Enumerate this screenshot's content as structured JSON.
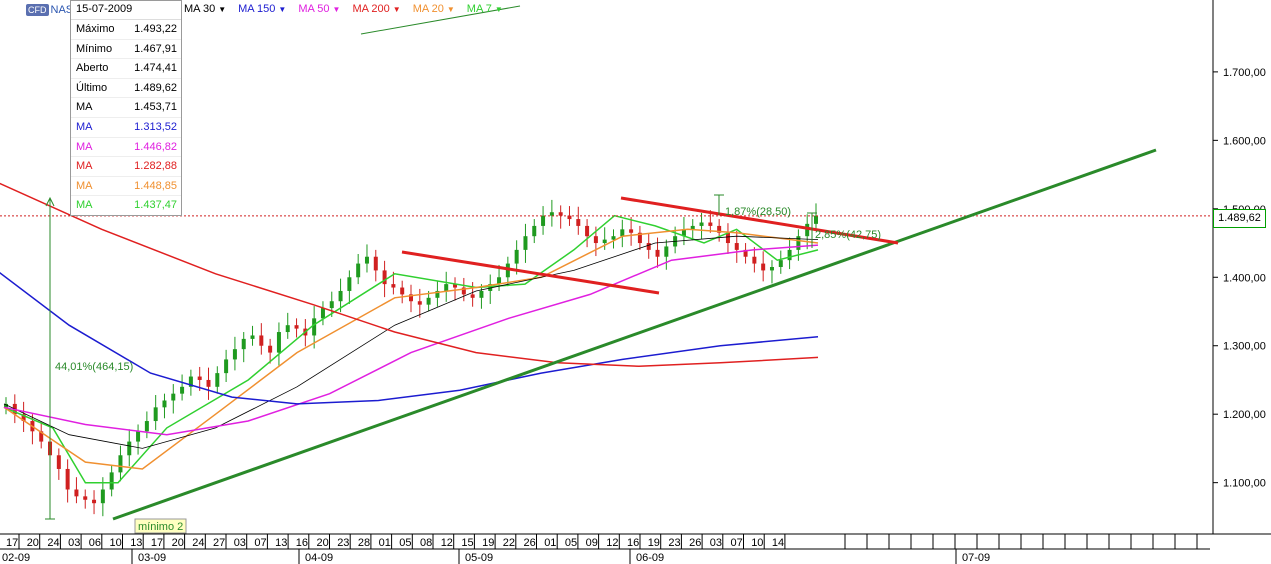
{
  "header": {
    "badge": "CFD",
    "symbol": "NAS",
    "ma_labels": [
      {
        "label": "MA 30",
        "color": "#000000"
      },
      {
        "label": "MA 150",
        "color": "#1c1cd0"
      },
      {
        "label": "MA 50",
        "color": "#e020e0"
      },
      {
        "label": "MA 200",
        "color": "#e02020"
      },
      {
        "label": "MA 20",
        "color": "#f09030"
      },
      {
        "label": "MA 7",
        "color": "#30d030"
      }
    ]
  },
  "info_panel": {
    "date": "15-07-2009",
    "rows": [
      {
        "label": "Máximo",
        "value": "1.493,22",
        "color": "#000000"
      },
      {
        "label": "Mínimo",
        "value": "1.467,91",
        "color": "#000000"
      },
      {
        "label": "Aberto",
        "value": "1.474,41",
        "color": "#000000"
      },
      {
        "label": "Último",
        "value": "1.489,62",
        "color": "#000000"
      },
      {
        "label": "MA",
        "value": "1.453,71",
        "color": "#000000"
      },
      {
        "label": "MA",
        "value": "1.313,52",
        "color": "#1c1cd0"
      },
      {
        "label": "MA",
        "value": "1.446,82",
        "color": "#e020e0"
      },
      {
        "label": "MA",
        "value": "1.282,88",
        "color": "#e02020"
      },
      {
        "label": "MA",
        "value": "1.448,85",
        "color": "#f09030"
      },
      {
        "label": "MA",
        "value": "1.437,47",
        "color": "#30d030"
      }
    ]
  },
  "last_price_label": "1.489,62",
  "chart_data": {
    "type": "candlestick",
    "y_axis": {
      "ticks": [
        "1.100,00",
        "1.200,00",
        "1.300,00",
        "1.400,00",
        "1.500,00",
        "1.600,00",
        "1.700,00"
      ],
      "tick_values": [
        1100,
        1200,
        1300,
        1400,
        1500,
        1600,
        1700
      ],
      "range": [
        1025,
        1805
      ]
    },
    "x_axis": {
      "days": [
        "17",
        "20",
        "24",
        "03",
        "06",
        "10",
        "13",
        "17",
        "20",
        "24",
        "27",
        "03",
        "07",
        "13",
        "16",
        "20",
        "23",
        "28",
        "01",
        "05",
        "08",
        "12",
        "15",
        "19",
        "22",
        "26",
        "01",
        "05",
        "09",
        "12",
        "16",
        "19",
        "23",
        "26",
        "03",
        "07",
        "10",
        "14"
      ],
      "months": [
        "02-09",
        "03-09",
        "04-09",
        "05-09",
        "06-09",
        "07-09"
      ]
    },
    "close_series": [
      1215,
      1200,
      1190,
      1175,
      1160,
      1140,
      1120,
      1090,
      1080,
      1075,
      1070,
      1090,
      1115,
      1140,
      1160,
      1175,
      1190,
      1210,
      1220,
      1230,
      1240,
      1255,
      1250,
      1240,
      1260,
      1280,
      1295,
      1310,
      1315,
      1300,
      1290,
      1320,
      1330,
      1325,
      1315,
      1340,
      1355,
      1365,
      1380,
      1400,
      1420,
      1430,
      1410,
      1390,
      1385,
      1375,
      1365,
      1360,
      1370,
      1380,
      1390,
      1385,
      1375,
      1370,
      1380,
      1390,
      1400,
      1420,
      1440,
      1460,
      1475,
      1490,
      1495,
      1490,
      1485,
      1475,
      1460,
      1450,
      1455,
      1460,
      1470,
      1465,
      1450,
      1440,
      1430,
      1445,
      1460,
      1470,
      1475,
      1480,
      1475,
      1465,
      1450,
      1440,
      1430,
      1420,
      1410,
      1415,
      1425,
      1440,
      1460,
      1478,
      1490
    ],
    "moving_averages": [
      {
        "name": "MA 7",
        "color": "#30d030",
        "points": [
          [
            0,
            1210
          ],
          [
            0.06,
            1180
          ],
          [
            0.1,
            1100
          ],
          [
            0.14,
            1100
          ],
          [
            0.2,
            1180
          ],
          [
            0.3,
            1250
          ],
          [
            0.38,
            1330
          ],
          [
            0.48,
            1405
          ],
          [
            0.58,
            1385
          ],
          [
            0.64,
            1390
          ],
          [
            0.7,
            1440
          ],
          [
            0.75,
            1490
          ],
          [
            0.8,
            1475
          ],
          [
            0.86,
            1450
          ],
          [
            0.9,
            1470
          ],
          [
            0.95,
            1425
          ],
          [
            1,
            1440
          ]
        ]
      },
      {
        "name": "MA 20",
        "color": "#f09030",
        "points": [
          [
            0,
            1210
          ],
          [
            0.1,
            1130
          ],
          [
            0.17,
            1120
          ],
          [
            0.26,
            1200
          ],
          [
            0.36,
            1290
          ],
          [
            0.48,
            1370
          ],
          [
            0.58,
            1385
          ],
          [
            0.66,
            1400
          ],
          [
            0.76,
            1460
          ],
          [
            0.84,
            1470
          ],
          [
            0.9,
            1465
          ],
          [
            1,
            1450
          ]
        ]
      },
      {
        "name": "MA 30",
        "color": "#000000",
        "points": [
          [
            0,
            1215
          ],
          [
            0.08,
            1170
          ],
          [
            0.17,
            1150
          ],
          [
            0.26,
            1180
          ],
          [
            0.36,
            1240
          ],
          [
            0.48,
            1330
          ],
          [
            0.58,
            1380
          ],
          [
            0.7,
            1410
          ],
          [
            0.8,
            1450
          ],
          [
            0.9,
            1460
          ],
          [
            1,
            1455
          ]
        ]
      },
      {
        "name": "MA 50",
        "color": "#e020e0",
        "points": [
          [
            0,
            1210
          ],
          [
            0.1,
            1185
          ],
          [
            0.2,
            1170
          ],
          [
            0.3,
            1190
          ],
          [
            0.4,
            1230
          ],
          [
            0.5,
            1290
          ],
          [
            0.62,
            1340
          ],
          [
            0.72,
            1375
          ],
          [
            0.82,
            1425
          ],
          [
            0.92,
            1440
          ],
          [
            1,
            1447
          ]
        ]
      },
      {
        "name": "MA 150",
        "color": "#1c1cd0",
        "points": [
          [
            -0.02,
            1420
          ],
          [
            0.08,
            1330
          ],
          [
            0.18,
            1260
          ],
          [
            0.28,
            1225
          ],
          [
            0.36,
            1215
          ],
          [
            0.46,
            1220
          ],
          [
            0.56,
            1235
          ],
          [
            0.66,
            1260
          ],
          [
            0.76,
            1280
          ],
          [
            0.88,
            1300
          ],
          [
            1,
            1313
          ]
        ]
      },
      {
        "name": "MA 200",
        "color": "#e02020",
        "points": [
          [
            -0.02,
            1545
          ],
          [
            0.12,
            1470
          ],
          [
            0.26,
            1405
          ],
          [
            0.38,
            1360
          ],
          [
            0.48,
            1320
          ],
          [
            0.58,
            1290
          ],
          [
            0.68,
            1275
          ],
          [
            0.78,
            1270
          ],
          [
            0.88,
            1275
          ],
          [
            1,
            1283
          ]
        ]
      }
    ],
    "last_price": 1489.62,
    "annotations": {
      "rise_label": "44,01%(464,15)",
      "pullback_label": "1,87%(28,50)",
      "gain_label": "2,85%(42,75)",
      "low_label": "mínimo 2"
    }
  }
}
